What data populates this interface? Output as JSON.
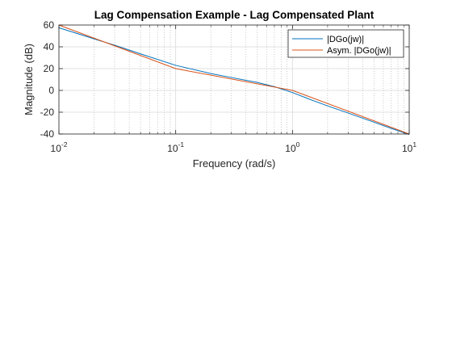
{
  "chart_data": {
    "type": "line",
    "title": "Lag Compensation Example - Lag Compensated Plant",
    "xlabel": "Frequency (rad/s)",
    "ylabel": "Magnitude (dB)",
    "xscale": "log",
    "xlim": [
      0.01,
      10
    ],
    "ylim": [
      -40,
      60
    ],
    "x_ticks": [
      {
        "base": "10",
        "exp": "-2",
        "value": 0.01
      },
      {
        "base": "10",
        "exp": "-1",
        "value": 0.1
      },
      {
        "base": "10",
        "exp": "0",
        "value": 1
      },
      {
        "base": "10",
        "exp": "1",
        "value": 10
      }
    ],
    "y_ticks": [
      {
        "label": "60",
        "value": 60
      },
      {
        "label": "40",
        "value": 40
      },
      {
        "label": "20",
        "value": 20
      },
      {
        "label": "0",
        "value": 0
      },
      {
        "label": "-20",
        "value": -20
      },
      {
        "label": "-40",
        "value": -40
      }
    ],
    "grid": "on (major and minor)",
    "legend_position": "top-right",
    "series": [
      {
        "name": "|DGo(jw)|",
        "color": "#0072BD",
        "x": [
          0.01,
          0.02,
          0.03,
          0.05,
          0.1,
          0.2,
          0.3,
          0.5,
          0.7,
          1.0,
          1.5,
          2.0,
          3.0,
          4.0,
          5.0,
          7.0,
          10.0
        ],
        "y": [
          57.5,
          47.3,
          41.5,
          33.5,
          23.0,
          15.5,
          11.8,
          7.3,
          3.4,
          -2.0,
          -9.3,
          -14.2,
          -20.8,
          -25.5,
          -29.2,
          -34.8,
          -40.5
        ]
      },
      {
        "name": "Asym. |DGo(jw)|",
        "color": "#D95319",
        "x": [
          0.01,
          0.1,
          1.0,
          10.0
        ],
        "y": [
          60.0,
          20.0,
          0.0,
          -40.0
        ]
      }
    ]
  }
}
